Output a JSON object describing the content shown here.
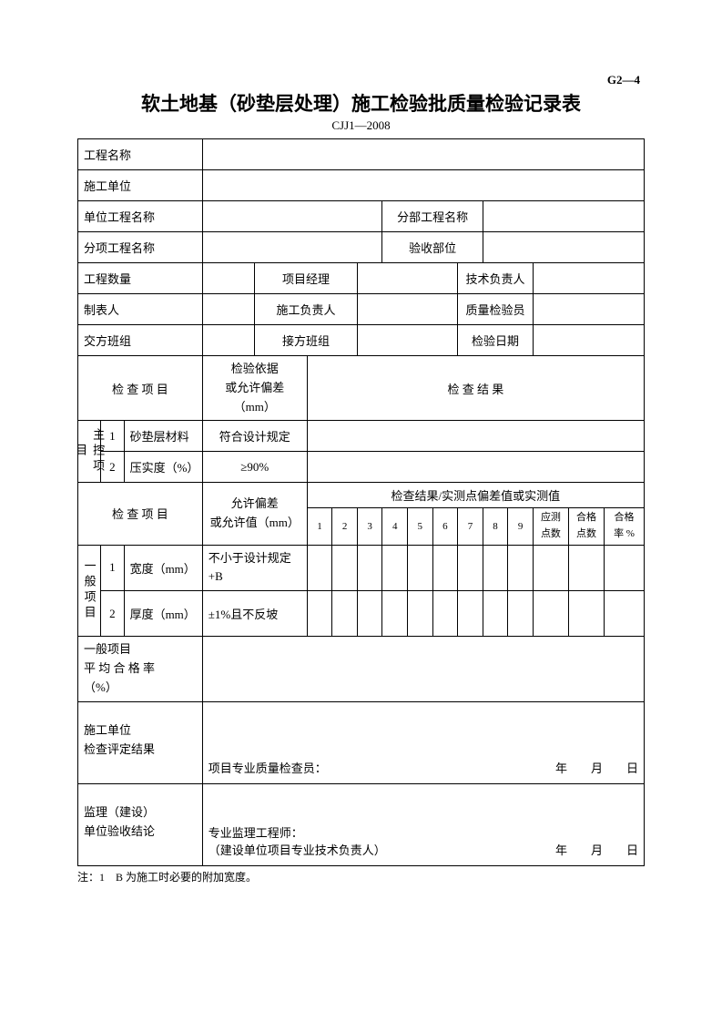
{
  "page_code": "G2—4",
  "title": "软土地基（砂垫层处理）施工检验批质量检验记录表",
  "subtitle": "CJJ1—2008",
  "header_rows": {
    "row1": {
      "label": "工程名称"
    },
    "row2": {
      "label": "施工单位"
    },
    "row3": {
      "label1": "单位工程名称",
      "label2": "分部工程名称"
    },
    "row4": {
      "label1": "分项工程名称",
      "label2": "验收部位"
    },
    "row5": {
      "label1": "工程数量",
      "label2": "项目经理",
      "label3": "技术负责人"
    },
    "row6": {
      "label1": "制表人",
      "label2": "施工负责人",
      "label3": "质量检验员"
    },
    "row7": {
      "label1": "交方班组",
      "label2": "接方班组",
      "label3": "检验日期"
    }
  },
  "section_header1": {
    "col1": "检 查 项 目",
    "col2": "检验依据\n或允许偏差\n（mm）",
    "col3": "检 查 结 果"
  },
  "main_control": {
    "label": "主控项目",
    "items": [
      {
        "num": "1",
        "name": "砂垫层材料",
        "spec": "符合设计规定"
      },
      {
        "num": "2",
        "name": "压实度（%）",
        "spec": "≥90%"
      }
    ]
  },
  "section_header2": {
    "col1": "检 查 项 目",
    "col2": "允许偏差\n或允许值（mm）",
    "col3_title": "检查结果/实测点偏差值或实测值",
    "nums": [
      "1",
      "2",
      "3",
      "4",
      "5",
      "6",
      "7",
      "8",
      "9"
    ],
    "extra": [
      "应测\n点数",
      "合格\n点数",
      "合格\n率 %"
    ]
  },
  "general": {
    "label": "一般项目",
    "items": [
      {
        "num": "1",
        "name": "宽度（mm）",
        "spec": "不小于设计规定\n+B"
      },
      {
        "num": "2",
        "name": "厚度（mm）",
        "spec": "±1%且不反坡"
      }
    ]
  },
  "avg_pass": "一般项目\n平 均 合 格 率\n（%）",
  "construction_result": {
    "label": "施工单位\n检查评定结果",
    "signature": "项目专业质量检查员：",
    "date": "年　　月　　日"
  },
  "supervision_result": {
    "label": "监理（建设）\n单位验收结论",
    "signature1": "专业监理工程师：",
    "signature2": "（建设单位项目专业技术负责人）",
    "date": "年　　月　　日"
  },
  "footnote": "注：1　B 为施工时必要的附加宽度。",
  "colors": {
    "border": "#000000",
    "bg": "#ffffff",
    "text": "#000000"
  }
}
